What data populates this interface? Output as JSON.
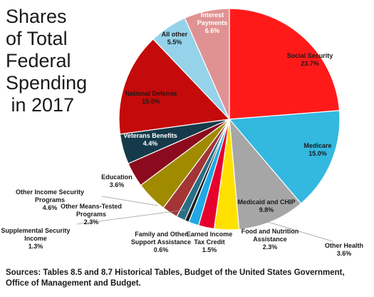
{
  "chart_data": {
    "type": "pie",
    "title_lines": [
      "Shares",
      "of Total",
      "Federal",
      "Spending",
      " in 2017"
    ],
    "source": "Sources: Tables 8.5 and 8.7 Historical Tables, Budget of the United States Government, Office of Management and Budget.",
    "slices": [
      {
        "id": "social-security",
        "label": [
          "Social Security"
        ],
        "pct_label": "23.7%",
        "value": 23.7,
        "color": "#ff1a1a",
        "text_color": "#1a1a1a"
      },
      {
        "id": "medicare",
        "label": [
          "Medicare"
        ],
        "pct_label": "15.0%",
        "value": 15.0,
        "color": "#33b8e0",
        "text_color": "#1a1a1a"
      },
      {
        "id": "medicaid-and-chip",
        "label": [
          "Medicaid and CHIP"
        ],
        "pct_label": "9.8%",
        "value": 9.8,
        "color": "#a6a6a6",
        "text_color": "#1a1a1a"
      },
      {
        "id": "other-health",
        "label": [
          "Other Health"
        ],
        "pct_label": "3.6%",
        "value": 3.6,
        "color": "#ffe100",
        "text_color": "#1a1a1a"
      },
      {
        "id": "food-and-nutrition-assistance",
        "label": [
          "Food and Nutrition",
          "Assistance"
        ],
        "pct_label": "2.3%",
        "value": 2.3,
        "color": "#e6002e",
        "text_color": "#1a1a1a"
      },
      {
        "id": "earned-income-tax-credit",
        "label": [
          "Earned Income",
          "Tax Credit"
        ],
        "pct_label": "1.5%",
        "value": 1.5,
        "color": "#1fa9e6",
        "text_color": "#1a1a1a"
      },
      {
        "id": "family-and-other-support-assistance",
        "label": [
          "Family and Other",
          "Support Assistance"
        ],
        "pct_label": "0.6%",
        "value": 0.6,
        "color": "#1c1c1c",
        "text_color": "#1a1a1a"
      },
      {
        "id": "supplemental-security-income",
        "label": [
          "Supplemental Security",
          "Income"
        ],
        "pct_label": "1.3%",
        "value": 1.3,
        "color": "#2a6f85",
        "text_color": "#1a1a1a"
      },
      {
        "id": "other-means-tested-programs",
        "label": [
          "Other Means-Tested",
          "Programs"
        ],
        "pct_label": "2.3%",
        "value": 2.3,
        "color": "#a33535",
        "text_color": "#1a1a1a"
      },
      {
        "id": "other-income-security-programs",
        "label": [
          "Other Income Security",
          "Programs"
        ],
        "pct_label": "4.6%",
        "value": 4.6,
        "color": "#a08a00",
        "text_color": "#1a1a1a"
      },
      {
        "id": "education",
        "label": [
          "Education"
        ],
        "pct_label": "3.6%",
        "value": 3.6,
        "color": "#8b0a1e",
        "text_color": "#1a1a1a"
      },
      {
        "id": "veterans-benefits",
        "label": [
          "Veterans Benefits"
        ],
        "pct_label": "4.4%",
        "value": 4.4,
        "color": "#153a4a",
        "text_color": "#ffffff"
      },
      {
        "id": "national-defense",
        "label": [
          "National Defense"
        ],
        "pct_label": "15.0%",
        "value": 15.0,
        "color": "#c40a0a",
        "text_color": "#1a1a1a"
      },
      {
        "id": "all-other",
        "label": [
          "All other"
        ],
        "pct_label": "5.5%",
        "value": 5.5,
        "color": "#95d3ea",
        "text_color": "#1a1a1a"
      },
      {
        "id": "interest-payments",
        "label": [
          "Interest",
          "Payments"
        ],
        "pct_label": "6.6%",
        "value": 6.6,
        "color": "#e09292",
        "text_color": "#ffffff"
      }
    ]
  }
}
